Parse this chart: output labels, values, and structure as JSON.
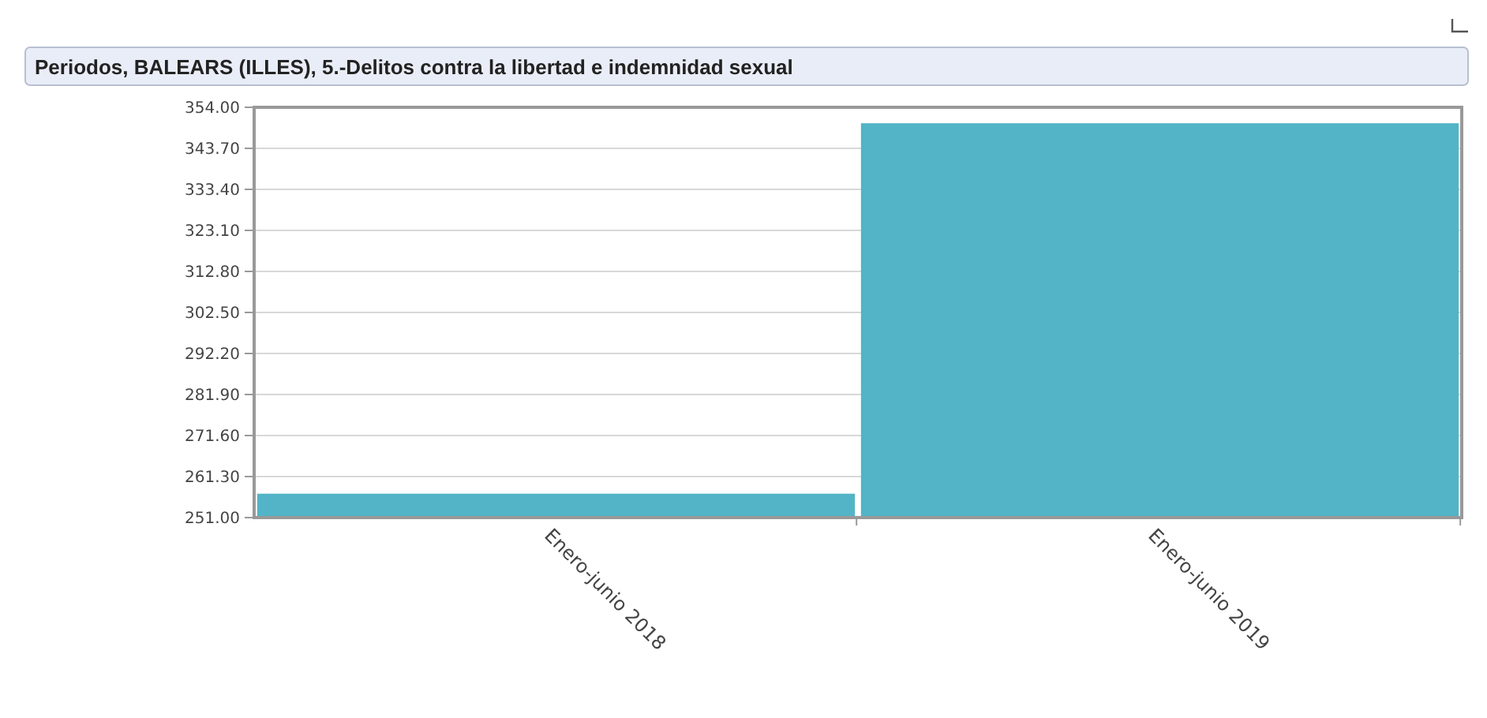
{
  "chart_data": {
    "type": "bar",
    "title": "Periodos, BALEARS (ILLES), 5.-Delitos contra la libertad e indemnidad sexual",
    "categories": [
      "Enero-junio 2018",
      "Enero-junio 2019"
    ],
    "values": [
      257,
      350
    ],
    "color": "#52b4c6",
    "ylim": [
      251,
      354
    ],
    "yticks": [
      {
        "value": 251,
        "label": "251.00"
      },
      {
        "value": 261.3,
        "label": "261.30"
      },
      {
        "value": 271.6,
        "label": "271.60"
      },
      {
        "value": 281.9,
        "label": "281.90"
      },
      {
        "value": 292.2,
        "label": "292.20"
      },
      {
        "value": 302.5,
        "label": "302.50"
      },
      {
        "value": 312.8,
        "label": "312.80"
      },
      {
        "value": 323.1,
        "label": "323.10"
      },
      {
        "value": 333.4,
        "label": "333.40"
      },
      {
        "value": 343.7,
        "label": "343.70"
      },
      {
        "value": 354,
        "label": "354.00"
      }
    ],
    "grid": "y"
  }
}
